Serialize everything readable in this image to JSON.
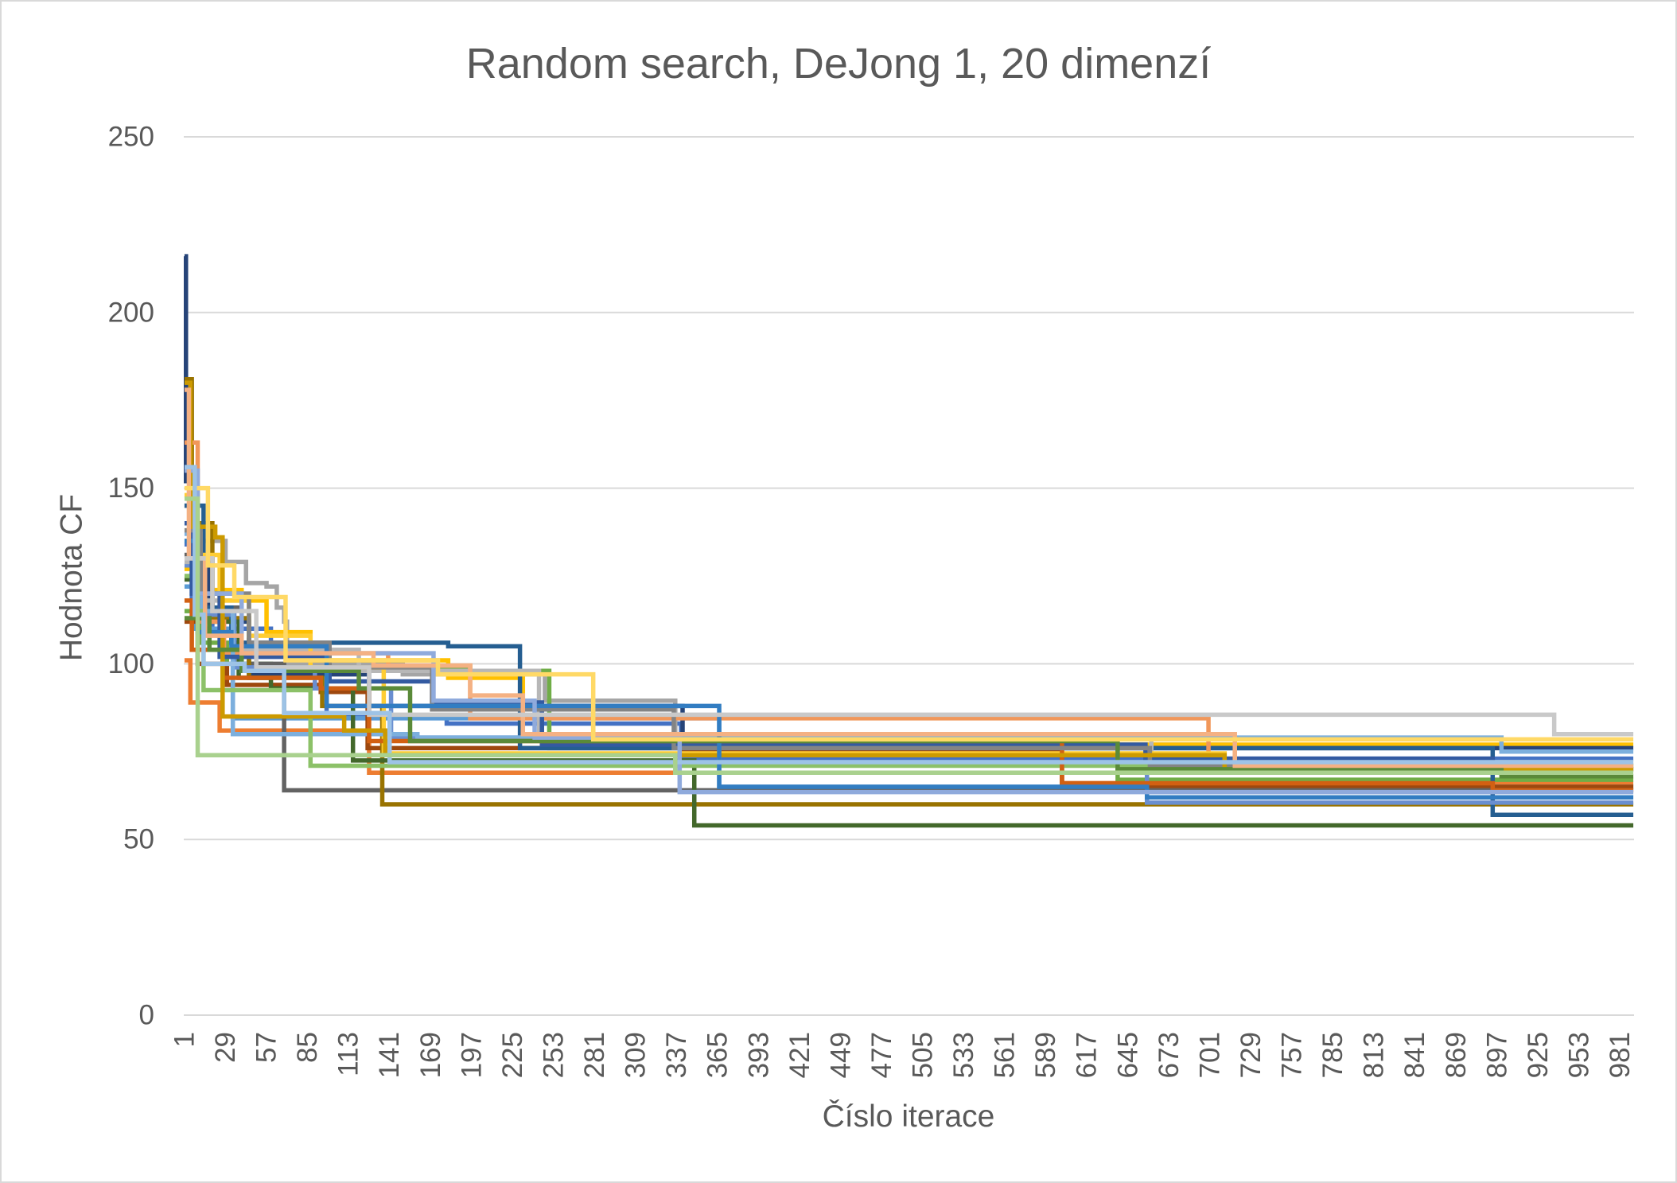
{
  "chart_data": {
    "type": "line",
    "title": "Random search, DeJong 1, 20 dimenzí",
    "xlabel": "Číslo iterace",
    "ylabel": "Hodnota CF",
    "ylim": [
      0,
      250
    ],
    "xlim": [
      1,
      990
    ],
    "y_ticks": [
      0,
      50,
      100,
      150,
      200,
      250
    ],
    "x_ticks": [
      1,
      29,
      57,
      85,
      113,
      141,
      169,
      197,
      225,
      253,
      281,
      309,
      337,
      365,
      393,
      421,
      449,
      477,
      505,
      533,
      561,
      589,
      617,
      645,
      673,
      701,
      729,
      757,
      785,
      813,
      841,
      869,
      897,
      925,
      953,
      981
    ],
    "grid": true,
    "legend": "none",
    "series": [
      {
        "color": "#4472C4",
        "points": [
          [
            1,
            134
          ],
          [
            6,
            118
          ],
          [
            20,
            110
          ],
          [
            60,
            103
          ],
          [
            98,
            85
          ],
          [
            180,
            83
          ],
          [
            340,
            73
          ]
        ]
      },
      {
        "color": "#ED7D31",
        "points": [
          [
            1,
            101
          ],
          [
            5,
            89
          ],
          [
            25,
            81
          ],
          [
            127,
            69
          ],
          [
            600,
            66
          ]
        ]
      },
      {
        "color": "#A5A5A5",
        "points": [
          [
            1,
            145
          ],
          [
            10,
            135
          ],
          [
            29,
            129
          ],
          [
            43,
            123
          ],
          [
            57,
            122
          ],
          [
            64,
            116
          ],
          [
            69,
            112
          ],
          [
            71,
            100
          ],
          [
            150,
            97
          ],
          [
            247,
            89.5
          ],
          [
            336,
            77
          ],
          [
            718,
            70
          ]
        ]
      },
      {
        "color": "#FFC000",
        "points": [
          [
            1,
            127
          ],
          [
            15,
            121
          ],
          [
            40,
            118
          ],
          [
            57,
            109
          ],
          [
            87,
            101
          ],
          [
            181,
            96
          ],
          [
            232,
            87
          ],
          [
            280,
            77
          ]
        ]
      },
      {
        "color": "#5B9BD5",
        "points": [
          [
            1,
            122
          ],
          [
            8,
            110
          ],
          [
            34,
            84.5
          ],
          [
            366,
            65
          ]
        ]
      },
      {
        "color": "#70AD47",
        "points": [
          [
            1,
            115
          ],
          [
            12,
            106
          ],
          [
            30,
            100
          ],
          [
            60,
            99
          ],
          [
            196,
            98
          ],
          [
            250,
            76
          ],
          [
            638,
            67
          ]
        ]
      },
      {
        "color": "#264478",
        "points": [
          [
            1,
            216
          ],
          [
            2,
            152
          ],
          [
            5,
            128
          ],
          [
            18,
            112
          ],
          [
            45,
            97
          ],
          [
            127,
            88
          ],
          [
            341,
            76
          ]
        ]
      },
      {
        "color": "#9E480E",
        "points": [
          [
            1,
            112
          ],
          [
            10,
            100
          ],
          [
            30,
            94
          ],
          [
            94,
            92
          ],
          [
            126,
            76
          ],
          [
            341,
            75
          ],
          [
            600,
            65
          ]
        ]
      },
      {
        "color": "#636363",
        "points": [
          [
            1,
            131
          ],
          [
            20,
            116
          ],
          [
            40,
            100
          ],
          [
            69,
            64
          ]
        ]
      },
      {
        "color": "#997300",
        "points": [
          [
            1,
            181
          ],
          [
            6,
            140
          ],
          [
            20,
            113
          ],
          [
            45,
            96
          ],
          [
            95,
            88
          ],
          [
            136,
            60
          ]
        ]
      },
      {
        "color": "#255E91",
        "points": [
          [
            1,
            145
          ],
          [
            14,
            116
          ],
          [
            33,
            106
          ],
          [
            181,
            105
          ],
          [
            230,
            76
          ],
          [
            894,
            57
          ]
        ]
      },
      {
        "color": "#43682B",
        "points": [
          [
            1,
            124
          ],
          [
            10,
            112
          ],
          [
            38,
            96
          ],
          [
            60,
            93
          ],
          [
            116,
            72.5
          ],
          [
            349,
            54
          ]
        ]
      },
      {
        "color": "#698ED0",
        "points": [
          [
            1,
            128
          ],
          [
            12,
            114
          ],
          [
            35,
            99
          ],
          [
            90,
            93
          ],
          [
            142,
            79
          ],
          [
            366,
            72
          ],
          [
            658,
            60.5
          ]
        ]
      },
      {
        "color": "#F1975A",
        "points": [
          [
            1,
            163
          ],
          [
            10,
            112
          ],
          [
            28,
            103
          ],
          [
            140,
            99.5
          ],
          [
            196,
            84.5
          ],
          [
            700,
            70
          ]
        ]
      },
      {
        "color": "#B7B7B7",
        "points": [
          [
            1,
            129
          ],
          [
            15,
            118
          ],
          [
            40,
            104
          ],
          [
            120,
            98
          ],
          [
            243,
            80
          ],
          [
            661,
            72
          ]
        ]
      },
      {
        "color": "#FFCD33",
        "points": [
          [
            1,
            148
          ],
          [
            10,
            131
          ],
          [
            25,
            118
          ],
          [
            45,
            108
          ],
          [
            87,
            99
          ],
          [
            137,
            74.5
          ],
          [
            711,
            71
          ]
        ]
      },
      {
        "color": "#7CAFDD",
        "points": [
          [
            1,
            137
          ],
          [
            12,
            115
          ],
          [
            34,
            80
          ],
          [
            160,
            79
          ],
          [
            900,
            75
          ]
        ]
      },
      {
        "color": "#8CC168",
        "points": [
          [
            1,
            125
          ],
          [
            8,
            115
          ],
          [
            14,
            92.5
          ],
          [
            87,
            71
          ]
        ]
      },
      {
        "color": "#335AA1",
        "points": [
          [
            1,
            140
          ],
          [
            6,
            120
          ],
          [
            25,
            102
          ],
          [
            100,
            95
          ],
          [
            170,
            89
          ],
          [
            245,
            77
          ],
          [
            657,
            73
          ],
          [
            894,
            70
          ]
        ]
      },
      {
        "color": "#D26012",
        "points": [
          [
            1,
            118
          ],
          [
            6,
            104
          ],
          [
            27,
            96
          ],
          [
            94,
            93
          ],
          [
            127,
            78
          ],
          [
            600,
            66
          ],
          [
            894,
            64
          ]
        ]
      },
      {
        "color": "#848484",
        "points": [
          [
            1,
            138
          ],
          [
            12,
            120
          ],
          [
            45,
            106
          ],
          [
            100,
            99
          ],
          [
            170,
            87
          ],
          [
            335,
            76
          ],
          [
            660,
            71
          ]
        ]
      },
      {
        "color": "#CC9A00",
        "points": [
          [
            1,
            180
          ],
          [
            5,
            139
          ],
          [
            22,
            136
          ],
          [
            27,
            85
          ],
          [
            110,
            81
          ],
          [
            138,
            74
          ],
          [
            711,
            70
          ]
        ]
      },
      {
        "color": "#327DC2",
        "points": [
          [
            1,
            135
          ],
          [
            10,
            109
          ],
          [
            33,
            105
          ],
          [
            98,
            88
          ],
          [
            366,
            65
          ],
          [
            658,
            62
          ]
        ]
      },
      {
        "color": "#5A8A39",
        "points": [
          [
            1,
            113
          ],
          [
            18,
            104
          ],
          [
            40,
            98
          ],
          [
            120,
            93
          ],
          [
            155,
            78
          ],
          [
            638,
            70
          ],
          [
            900,
            68
          ]
        ]
      },
      {
        "color": "#8FAADC",
        "points": [
          [
            1,
            155
          ],
          [
            10,
            120
          ],
          [
            40,
            103
          ],
          [
            171,
            89.5
          ],
          [
            240,
            79
          ],
          [
            339,
            63.5
          ]
        ]
      },
      {
        "color": "#F4B183",
        "points": [
          [
            1,
            178
          ],
          [
            4,
            130
          ],
          [
            15,
            108
          ],
          [
            40,
            103
          ],
          [
            130,
            99.5
          ],
          [
            196,
            91
          ],
          [
            232,
            80
          ],
          [
            718,
            71
          ]
        ]
      },
      {
        "color": "#C9C9C9",
        "points": [
          [
            1,
            130
          ],
          [
            20,
            115
          ],
          [
            50,
            99
          ],
          [
            127,
            85.5
          ],
          [
            936,
            80
          ]
        ]
      },
      {
        "color": "#FFD966",
        "points": [
          [
            1,
            150
          ],
          [
            17,
            128
          ],
          [
            35,
            119
          ],
          [
            70,
            101
          ],
          [
            174,
            97
          ],
          [
            280,
            78.5
          ]
        ]
      },
      {
        "color": "#9DC3E6",
        "points": [
          [
            1,
            156
          ],
          [
            8,
            114
          ],
          [
            14,
            100
          ],
          [
            42,
            98
          ],
          [
            69,
            86
          ],
          [
            141,
            72
          ]
        ]
      },
      {
        "color": "#A9D18E",
        "points": [
          [
            1,
            147
          ],
          [
            10,
            74
          ],
          [
            336,
            69
          ]
        ]
      }
    ]
  }
}
